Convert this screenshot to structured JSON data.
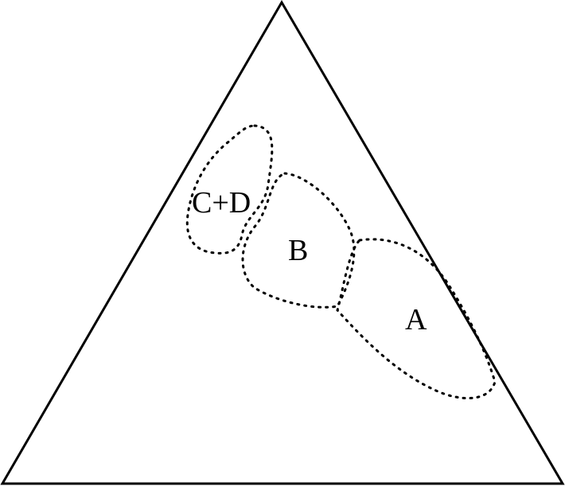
{
  "diagram": {
    "regions": [
      {
        "id": "cd",
        "label": "C+D"
      },
      {
        "id": "b",
        "label": "B"
      },
      {
        "id": "a",
        "label": "A"
      }
    ]
  }
}
